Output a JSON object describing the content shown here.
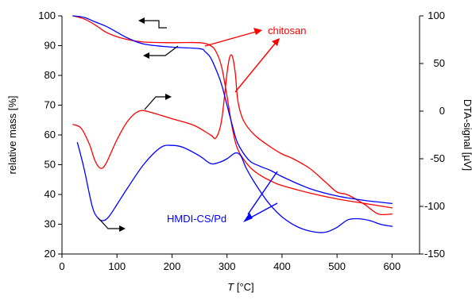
{
  "chart_data": {
    "type": "line",
    "title": "",
    "xlabel": {
      "italic": "T",
      "rest": " [°C]"
    },
    "ylabel_left": "relative mass [%]",
    "ylabel_right": "DTA-signal [µV]",
    "xlim": [
      0,
      650
    ],
    "ylim_left": [
      20,
      100
    ],
    "ylim_right": [
      -150,
      100
    ],
    "x_ticks": [
      0,
      100,
      200,
      300,
      400,
      500,
      600
    ],
    "y_left_ticks": [
      20,
      30,
      40,
      50,
      60,
      70,
      80,
      90,
      100
    ],
    "y_right_ticks": [
      -150,
      -100,
      -50,
      0,
      50,
      100
    ],
    "grid": false,
    "colors": {
      "chitosan": "#ff0000",
      "hmdi": "#0000ff",
      "black": "#000000"
    },
    "series": [
      {
        "label": "chitosan",
        "kind": "mass",
        "axis": "left",
        "color": "#ff0000",
        "x": [
          20,
          40,
          60,
          80,
          100,
          120,
          150,
          200,
          250,
          270,
          280,
          290,
          300,
          310,
          320,
          340,
          360,
          380,
          400,
          450,
          500,
          550,
          600
        ],
        "y": [
          100,
          99,
          97,
          94.5,
          93,
          92,
          91.2,
          91,
          91,
          90,
          88,
          83,
          73,
          62,
          55,
          49.5,
          46.5,
          44.5,
          43,
          40.5,
          38.5,
          37,
          35.5
        ]
      },
      {
        "label": "chitosan",
        "kind": "dta",
        "axis": "right",
        "color": "#ff0000",
        "x": [
          20,
          35,
          50,
          60,
          70,
          80,
          100,
          120,
          140,
          160,
          200,
          240,
          270,
          280,
          290,
          300,
          305,
          310,
          315,
          320,
          330,
          350,
          380,
          400,
          420,
          450,
          480,
          500,
          520,
          550,
          575,
          600
        ],
        "y": [
          -14,
          -18,
          -35,
          -52,
          -60,
          -55,
          -30,
          -10,
          0,
          -1,
          -8,
          -15,
          -25,
          -28,
          -10,
          40,
          57,
          57,
          40,
          10,
          -10,
          -25,
          -38,
          -45,
          -50,
          -60,
          -75,
          -85,
          -88,
          -98,
          -108,
          -108
        ]
      },
      {
        "label": "HMDI-CS/Pd",
        "kind": "mass",
        "axis": "left",
        "color": "#0000ff",
        "x": [
          20,
          40,
          60,
          80,
          100,
          120,
          150,
          200,
          250,
          260,
          270,
          280,
          290,
          300,
          310,
          320,
          340,
          360,
          380,
          400,
          450,
          500,
          550,
          600
        ],
        "y": [
          100,
          99.5,
          98,
          96.5,
          94.5,
          92.5,
          90.5,
          89.5,
          89,
          88,
          86,
          82,
          77,
          70,
          63,
          57,
          51.5,
          49.5,
          48,
          46,
          42,
          39.5,
          38,
          37
        ]
      },
      {
        "label": "HMDI-CS/Pd",
        "kind": "dta",
        "axis": "right",
        "color": "#0000ff",
        "x": [
          28,
          40,
          55,
          65,
          75,
          85,
          100,
          120,
          150,
          180,
          200,
          220,
          250,
          270,
          285,
          300,
          315,
          325,
          335,
          350,
          375,
          400,
          430,
          460,
          480,
          500,
          520,
          540,
          560,
          580,
          600
        ],
        "y": [
          -33,
          -60,
          -100,
          -112,
          -115,
          -111,
          -98,
          -80,
          -55,
          -38,
          -36,
          -38,
          -47,
          -55,
          -54,
          -50,
          -44,
          -47,
          -60,
          -75,
          -96,
          -111,
          -122,
          -127,
          -127,
          -122,
          -114,
          -113,
          -115,
          -119,
          -121
        ]
      }
    ],
    "annotations": {
      "chitosan_label": "chitosan",
      "hmdi_label": "HMDI-CS/Pd"
    }
  }
}
